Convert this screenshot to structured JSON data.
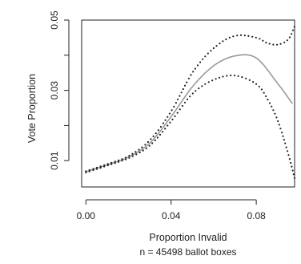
{
  "chart_data": {
    "type": "line",
    "title": "",
    "xlabel": "Proportion Invalid",
    "ylabel": "Vote Proportion",
    "note": "n = 45498 ballot boxes",
    "xlim": [
      -0.002,
      0.098
    ],
    "ylim": [
      0.0025,
      0.05
    ],
    "x_ticks": [
      0.0,
      0.04,
      0.08
    ],
    "x_tick_labels": [
      "0.00",
      "0.04",
      "0.08"
    ],
    "y_ticks": [
      0.01,
      0.03,
      0.05
    ],
    "y_tick_labels": [
      "0.01",
      "0.03",
      "0.05"
    ],
    "y_minor_ticks": [
      0.02,
      0.04
    ],
    "grid": false,
    "colors": {
      "estimate": "#999999",
      "band": "#222222",
      "axis": "#222222"
    },
    "series": [
      {
        "style": "solid",
        "x": [
          0.0,
          0.01,
          0.02,
          0.03,
          0.04,
          0.05,
          0.06,
          0.07,
          0.08,
          0.09,
          0.097
        ],
        "y": [
          0.0068,
          0.0088,
          0.011,
          0.015,
          0.0225,
          0.031,
          0.037,
          0.0398,
          0.0392,
          0.032,
          0.0262
        ]
      },
      {
        "style": "dotted",
        "x": [
          0.0,
          0.01,
          0.02,
          0.03,
          0.04,
          0.05,
          0.06,
          0.07,
          0.08,
          0.085,
          0.09,
          0.095,
          0.098
        ],
        "y": [
          0.007,
          0.009,
          0.0113,
          0.0158,
          0.024,
          0.035,
          0.042,
          0.0455,
          0.045,
          0.0435,
          0.043,
          0.0445,
          0.0482
        ]
      },
      {
        "style": "dotted",
        "x": [
          0.0,
          0.01,
          0.02,
          0.03,
          0.04,
          0.05,
          0.06,
          0.07,
          0.08,
          0.085,
          0.09,
          0.095,
          0.098
        ],
        "y": [
          0.0066,
          0.0086,
          0.0107,
          0.0143,
          0.0212,
          0.029,
          0.033,
          0.0342,
          0.0318,
          0.0278,
          0.0215,
          0.012,
          0.005
        ]
      }
    ]
  }
}
